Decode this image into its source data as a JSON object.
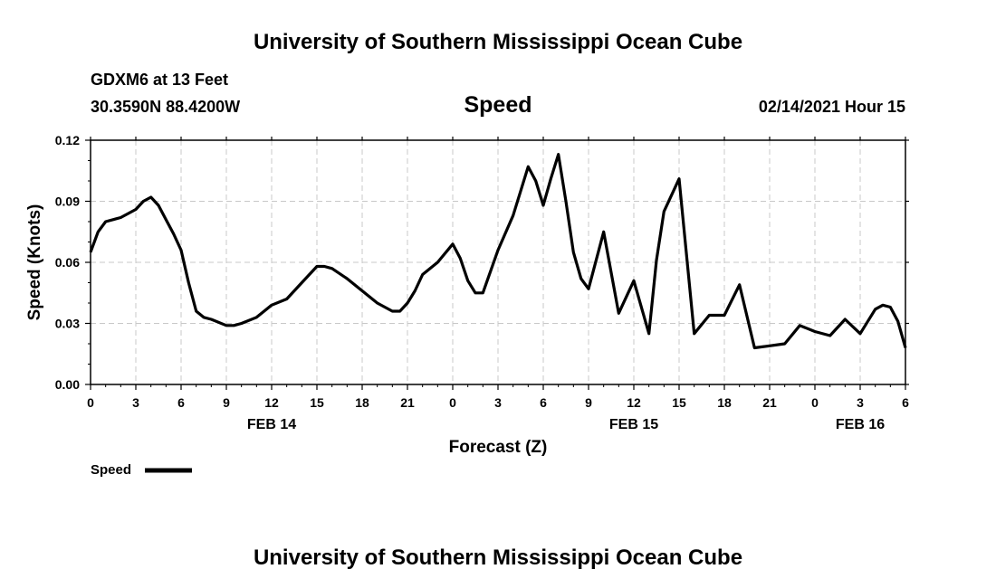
{
  "header": {
    "top_title": "University of Southern Mississippi Ocean Cube",
    "bottom_title": "University of Southern Mississippi Ocean Cube",
    "station_line": "GDXM6 at 13 Feet",
    "coords_line": "30.3590N 88.4200W",
    "datetime": "02/14/2021 Hour 15"
  },
  "colors": {
    "line": "#000000",
    "grid": "#c8c8c8"
  },
  "chart_data": {
    "type": "line",
    "title": "Speed",
    "xlabel": "Forecast (Z)",
    "ylabel": "Speed (Knots)",
    "xlim": [
      0,
      54
    ],
    "ylim": [
      0,
      0.12
    ],
    "yticks": [
      0,
      0.03,
      0.06,
      0.09,
      0.12
    ],
    "ytick_labels": [
      "0.00",
      "0.03",
      "0.06",
      "0.09",
      "0.12"
    ],
    "xticks": [
      0,
      3,
      6,
      9,
      12,
      15,
      18,
      21,
      24,
      27,
      30,
      33,
      36,
      39,
      42,
      45,
      48,
      51,
      54
    ],
    "xtick_labels": [
      "0",
      "3",
      "6",
      "9",
      "12",
      "15",
      "18",
      "21",
      "0",
      "3",
      "6",
      "9",
      "12",
      "15",
      "18",
      "21",
      "0",
      "3",
      "6"
    ],
    "date_labels": [
      {
        "x": 12,
        "label": "FEB 14"
      },
      {
        "x": 36,
        "label": "FEB 15"
      },
      {
        "x": 51,
        "label": "FEB 16"
      }
    ],
    "legend": "Speed",
    "series": [
      {
        "name": "Speed",
        "x": [
          0,
          0.5,
          1,
          2,
          3,
          3.5,
          4,
          4.5,
          5,
          5.5,
          6,
          6.5,
          7,
          7.5,
          8,
          9,
          9.5,
          10,
          11,
          11.5,
          12,
          13,
          14,
          15,
          15.5,
          16,
          17,
          18,
          19,
          20,
          20.5,
          21,
          21.5,
          22,
          23,
          24,
          24.5,
          25,
          25.5,
          26,
          27,
          28,
          29,
          29.5,
          30,
          30.5,
          31,
          31.5,
          32,
          32.5,
          33,
          34,
          35,
          36,
          37,
          37.5,
          38,
          39,
          40,
          41,
          42,
          43,
          44,
          45,
          46,
          47,
          48,
          49,
          50,
          51,
          52,
          52.5,
          53,
          53.5,
          54
        ],
        "values": [
          0.065,
          0.075,
          0.08,
          0.082,
          0.086,
          0.09,
          0.092,
          0.088,
          0.081,
          0.074,
          0.066,
          0.05,
          0.036,
          0.033,
          0.032,
          0.029,
          0.029,
          0.03,
          0.033,
          0.036,
          0.039,
          0.042,
          0.05,
          0.058,
          0.058,
          0.057,
          0.052,
          0.046,
          0.04,
          0.036,
          0.036,
          0.04,
          0.046,
          0.054,
          0.06,
          0.069,
          0.062,
          0.051,
          0.045,
          0.045,
          0.066,
          0.083,
          0.107,
          0.1,
          0.088,
          0.101,
          0.113,
          0.09,
          0.065,
          0.052,
          0.047,
          0.075,
          0.035,
          0.051,
          0.025,
          0.061,
          0.085,
          0.101,
          0.025,
          0.034,
          0.034,
          0.049,
          0.018,
          0.019,
          0.02,
          0.029,
          0.026,
          0.024,
          0.032,
          0.025,
          0.037,
          0.039,
          0.038,
          0.031,
          0.018
        ]
      }
    ]
  }
}
